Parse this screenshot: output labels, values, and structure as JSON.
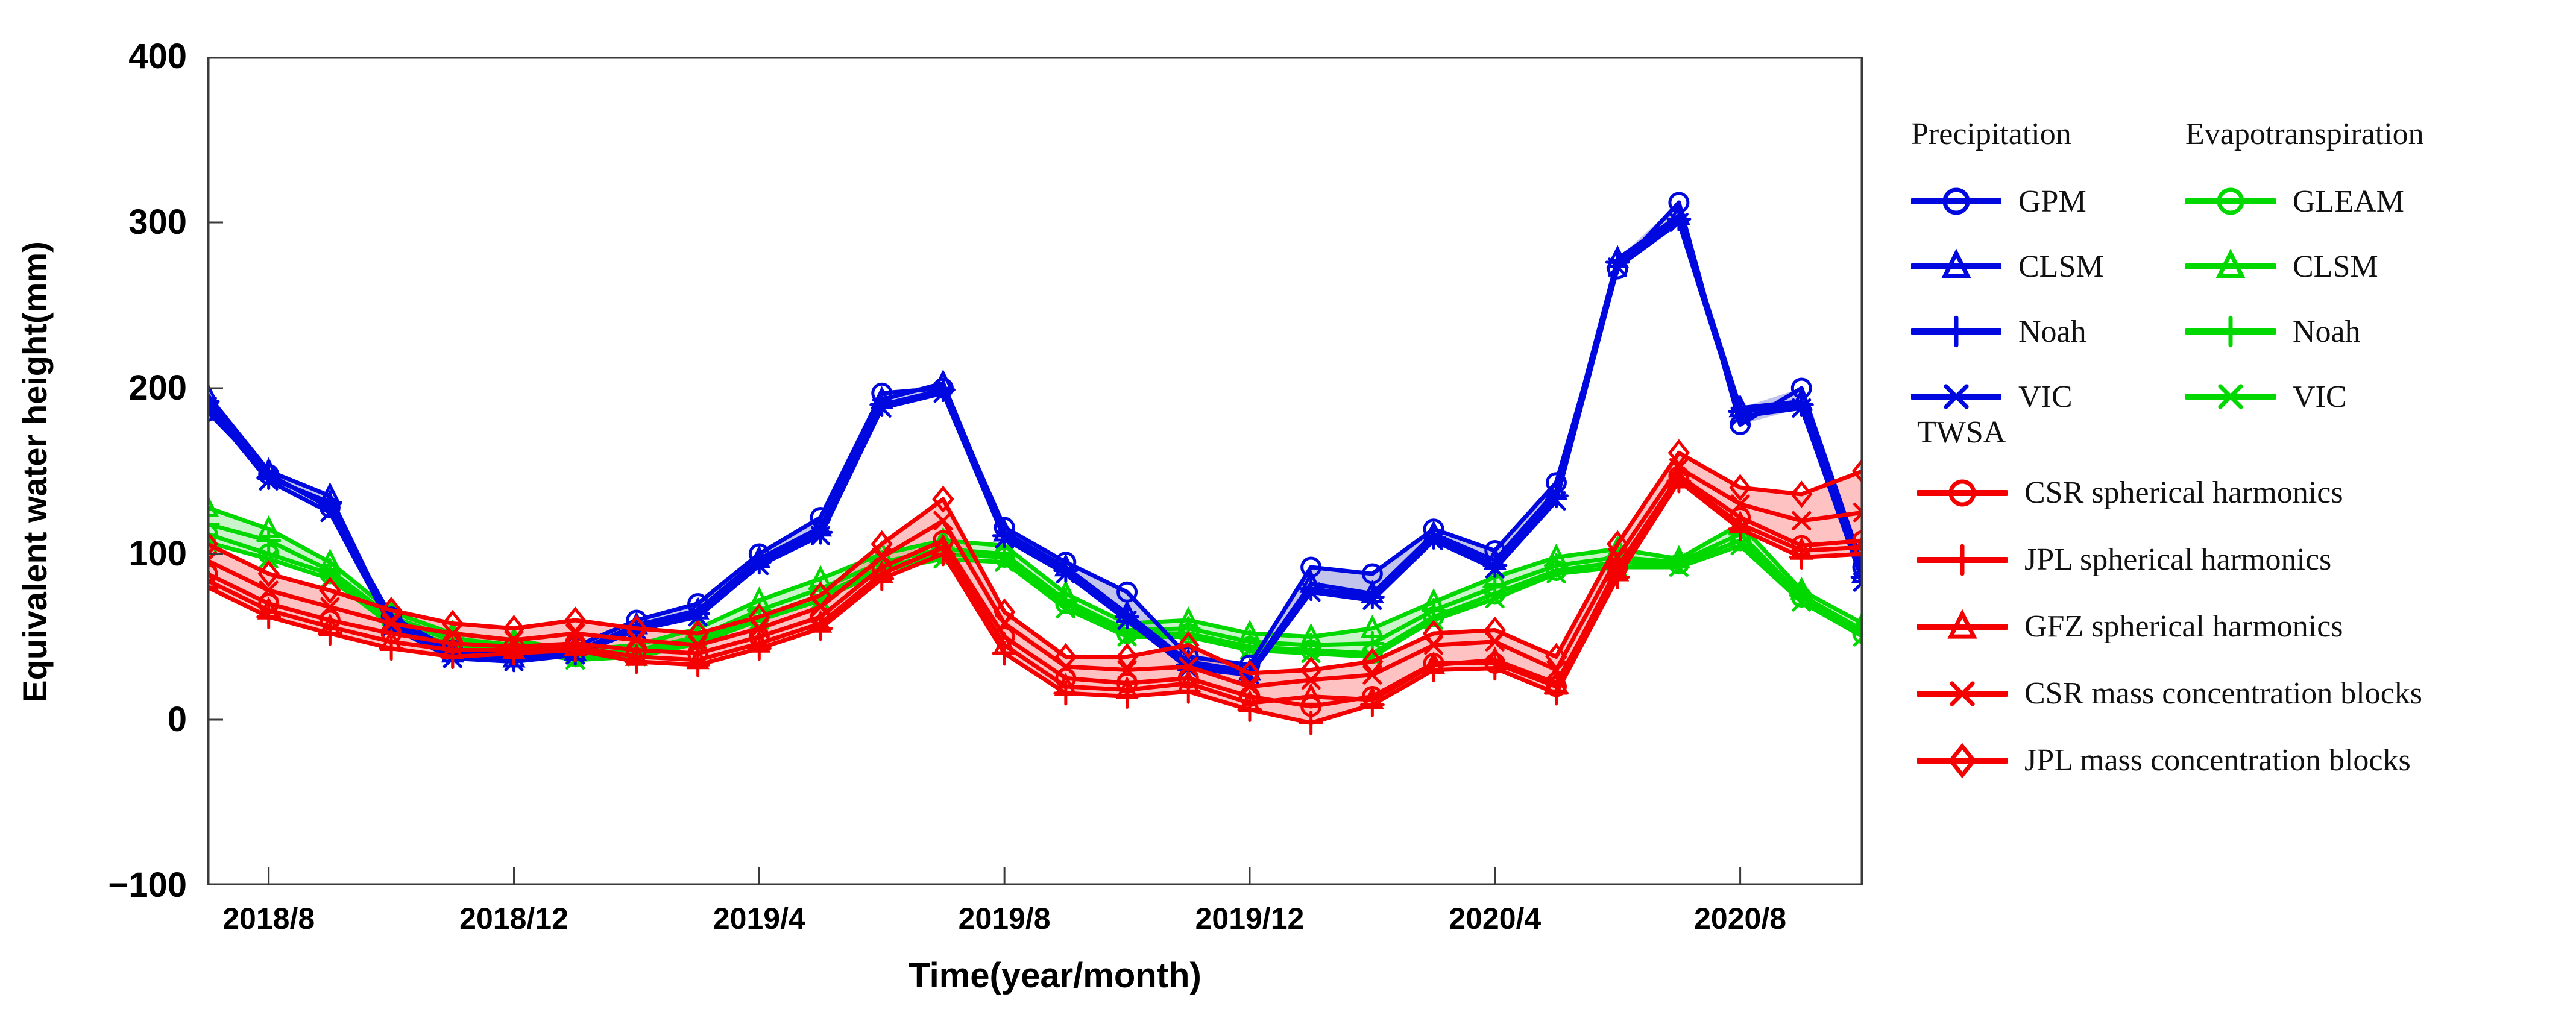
{
  "axes": {
    "y_title": "Equivalent water height(mm)",
    "x_title": "Time(year/month)",
    "y_ticks": [
      400,
      300,
      200,
      100,
      0,
      -100
    ],
    "x_tick_labels": [
      "2018/8",
      "2018/12",
      "2019/4",
      "2019/8",
      "2019/12",
      "2020/4",
      "2020/8"
    ]
  },
  "colors": {
    "precipitation": "#0008e0",
    "evapotranspiration": "#00d800",
    "twsa": "#f40000",
    "band_blue": "rgba(120,125,210,0.45)",
    "band_green": "rgba(120,225,120,0.40)",
    "band_red": "rgba(255,110,110,0.42)",
    "axis": "#3a3a3a",
    "text": "#000000"
  },
  "legend": {
    "groups": [
      {
        "id": "precip",
        "title": "Precipitation",
        "color": "#0008e0",
        "items": [
          {
            "label": "GPM",
            "marker": "circle"
          },
          {
            "label": "CLSM",
            "marker": "triangle"
          },
          {
            "label": "Noah",
            "marker": "plus"
          },
          {
            "label": "VIC",
            "marker": "x"
          }
        ]
      },
      {
        "id": "evap",
        "title": "Evapotranspiration",
        "color": "#00d800",
        "items": [
          {
            "label": "GLEAM",
            "marker": "circle"
          },
          {
            "label": "CLSM",
            "marker": "triangle"
          },
          {
            "label": "Noah",
            "marker": "plus"
          },
          {
            "label": "VIC",
            "marker": "x"
          }
        ]
      },
      {
        "id": "twsa",
        "title": "TWSA",
        "color": "#f40000",
        "items": [
          {
            "label": "CSR spherical harmonics",
            "marker": "circle"
          },
          {
            "label": "JPL  spherical harmonics",
            "marker": "plus"
          },
          {
            "label": "GFZ  spherical harmonics",
            "marker": "triangle"
          },
          {
            "label": "CSR mass concentration blocks",
            "marker": "x"
          },
          {
            "label": "JPL mass concentration blocks",
            "marker": "diamond"
          }
        ]
      }
    ]
  },
  "chart_data": {
    "type": "line",
    "title": "",
    "xlabel": "Time(year/month)",
    "ylabel": "Equivalent water height(mm)",
    "ylim": [
      -100,
      400
    ],
    "grid": false,
    "legend_position": "right",
    "x": [
      "2018/7",
      "2018/8",
      "2018/9",
      "2018/10",
      "2018/11",
      "2018/12",
      "2019/1",
      "2019/2",
      "2019/3",
      "2019/4",
      "2019/5",
      "2019/6",
      "2019/7",
      "2019/8",
      "2019/9",
      "2019/10",
      "2019/11",
      "2019/12",
      "2020/1",
      "2020/2",
      "2020/3",
      "2020/4",
      "2020/5",
      "2020/6",
      "2020/7",
      "2020/8",
      "2020/9",
      "2020/10"
    ],
    "x_tick_indices": [
      1,
      5,
      9,
      13,
      17,
      21,
      25
    ],
    "series": [
      {
        "name": "GPM",
        "group": "precipitation",
        "marker": "circle",
        "values": [
          186,
          148,
          128,
          62,
          42,
          40,
          44,
          60,
          70,
          100,
          122,
          197,
          200,
          116,
          95,
          77,
          38,
          33,
          92,
          88,
          115,
          102,
          143,
          272,
          312,
          178,
          200,
          92
        ]
      },
      {
        "name": "CLSM (precipitation)",
        "group": "precipitation",
        "marker": "triangle",
        "values": [
          196,
          150,
          135,
          58,
          40,
          37,
          41,
          57,
          66,
          97,
          116,
          193,
          203,
          113,
          92,
          64,
          35,
          29,
          82,
          76,
          112,
          96,
          138,
          278,
          304,
          188,
          192,
          88
        ]
      },
      {
        "name": "Noah (precipitation)",
        "group": "precipitation",
        "marker": "plus",
        "values": [
          192,
          146,
          131,
          60,
          38,
          36,
          40,
          56,
          64,
          95,
          113,
          190,
          199,
          111,
          90,
          62,
          33,
          28,
          79,
          74,
          110,
          93,
          135,
          276,
          302,
          186,
          190,
          86
        ]
      },
      {
        "name": "VIC (precipitation)",
        "group": "precipitation",
        "marker": "x",
        "values": [
          189,
          144,
          125,
          56,
          37,
          35,
          39,
          54,
          62,
          93,
          111,
          188,
          197,
          109,
          88,
          60,
          31,
          27,
          77,
          72,
          108,
          91,
          132,
          273,
          300,
          183,
          188,
          83
        ]
      },
      {
        "name": "GLEAM",
        "group": "evapotranspiration",
        "marker": "circle",
        "values": [
          112,
          100,
          88,
          60,
          48,
          44,
          38,
          40,
          48,
          62,
          75,
          92,
          100,
          98,
          70,
          52,
          52,
          44,
          42,
          40,
          62,
          76,
          90,
          95,
          94,
          108,
          74,
          52
        ]
      },
      {
        "name": "CLSM (evapotranspiration)",
        "group": "evapotranspiration",
        "marker": "triangle",
        "values": [
          128,
          115,
          95,
          65,
          52,
          48,
          42,
          45,
          55,
          72,
          85,
          100,
          108,
          105,
          76,
          58,
          60,
          52,
          50,
          55,
          71,
          86,
          98,
          103,
          97,
          118,
          78,
          58
        ]
      },
      {
        "name": "Noah (evapotranspiration)",
        "group": "evapotranspiration",
        "marker": "plus",
        "values": [
          118,
          108,
          90,
          62,
          49,
          45,
          39,
          42,
          50,
          66,
          79,
          95,
          103,
          100,
          72,
          54,
          55,
          47,
          45,
          46,
          66,
          80,
          93,
          98,
          95,
          112,
          75,
          54
        ]
      },
      {
        "name": "VIC (evapotranspiration)",
        "group": "evapotranspiration",
        "marker": "x",
        "values": [
          107,
          97,
          85,
          57,
          45,
          42,
          36,
          38,
          46,
          60,
          72,
          90,
          97,
          95,
          67,
          50,
          50,
          42,
          40,
          38,
          60,
          73,
          88,
          92,
          92,
          105,
          71,
          50
        ]
      },
      {
        "name": "CSR spherical harmonics",
        "group": "twsa",
        "marker": "circle",
        "values": [
          88,
          70,
          60,
          52,
          46,
          44,
          46,
          42,
          40,
          50,
          62,
          92,
          108,
          50,
          25,
          22,
          25,
          14,
          8,
          14,
          34,
          34,
          20,
          92,
          147,
          122,
          105,
          108
        ]
      },
      {
        "name": "JPL spherical harmonics",
        "group": "twsa",
        "marker": "plus",
        "values": [
          80,
          62,
          52,
          43,
          38,
          40,
          42,
          35,
          33,
          43,
          55,
          85,
          100,
          40,
          16,
          14,
          17,
          6,
          -2,
          9,
          30,
          31,
          16,
          86,
          144,
          115,
          98,
          100
        ]
      },
      {
        "name": "GFZ spherical harmonics",
        "group": "twsa",
        "marker": "triangle",
        "values": [
          84,
          66,
          56,
          47,
          42,
          42,
          44,
          38,
          36,
          46,
          58,
          88,
          104,
          45,
          20,
          18,
          22,
          10,
          14,
          12,
          33,
          36,
          22,
          89,
          145,
          118,
          102,
          104
        ]
      },
      {
        "name": "CSR mass concentration blocks",
        "group": "twsa",
        "marker": "x",
        "values": [
          96,
          78,
          68,
          58,
          52,
          48,
          52,
          48,
          45,
          55,
          68,
          98,
          120,
          58,
          32,
          30,
          32,
          20,
          24,
          27,
          45,
          47,
          30,
          98,
          152,
          130,
          120,
          125
        ]
      },
      {
        "name": "JPL mass concentration blocks",
        "group": "twsa",
        "marker": "diamond",
        "values": [
          106,
          88,
          78,
          66,
          58,
          55,
          60,
          55,
          52,
          62,
          75,
          106,
          133,
          65,
          38,
          38,
          45,
          28,
          30,
          35,
          52,
          54,
          38,
          106,
          161,
          140,
          136,
          150
        ]
      }
    ]
  }
}
